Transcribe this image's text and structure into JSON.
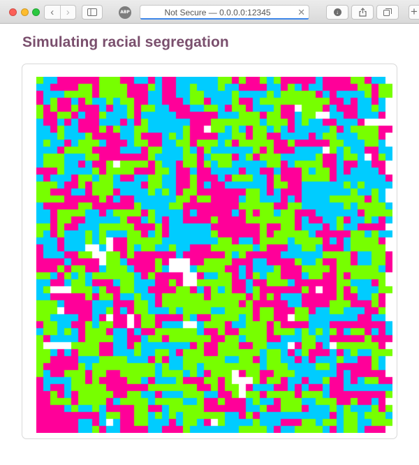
{
  "browser": {
    "address_text": "Not Secure — 0.0.0.0:12345",
    "adblock_badge": "ABP",
    "new_tab_label": "+"
  },
  "page": {
    "title": "Simulating racial segregation"
  },
  "simulation": {
    "columns": 51,
    "rows": 51,
    "colors": {
      "group_a": "#ff0099",
      "group_b": "#00ccff",
      "group_c": "#77ff00",
      "empty": "#ffffff"
    }
  }
}
